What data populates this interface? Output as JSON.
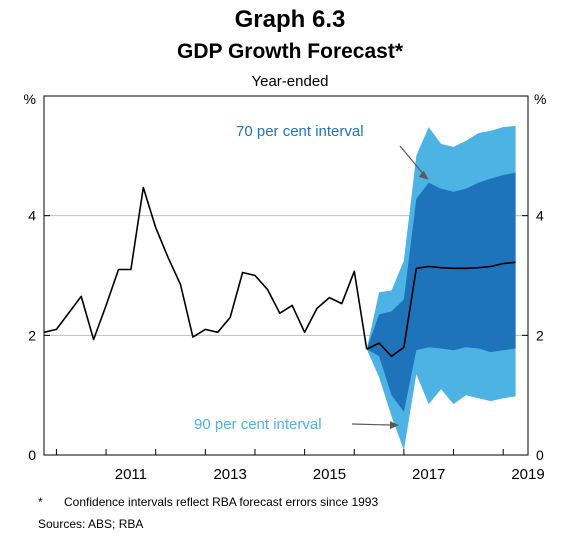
{
  "chart_data": {
    "type": "area",
    "title": "Graph 6.3",
    "subtitle": "GDP Growth Forecast*",
    "subtitle2": "Year-ended",
    "y_unit_left": "%",
    "y_unit_right": "%",
    "ylim": [
      0,
      6
    ],
    "yticks": [
      0,
      2,
      4
    ],
    "xlim": [
      2009.75,
      2019.5
    ],
    "xticks": [
      "2011",
      "2013",
      "2015",
      "2017",
      "2019"
    ],
    "xtick_positions": [
      2011.0,
      2013.0,
      2015.0,
      2017.0,
      2019.0
    ],
    "grid": true,
    "series": [
      {
        "type": "line",
        "color": "#000000",
        "x": [
          2009.75,
          2010.0,
          2010.5,
          2010.75,
          2011.0,
          2011.25,
          2011.5,
          2011.75,
          2012.0,
          2012.25,
          2012.5,
          2012.75,
          2013.0,
          2013.25,
          2013.5,
          2013.75,
          2014.0,
          2014.25,
          2014.5,
          2014.75,
          2015.0,
          2015.25,
          2015.5,
          2015.75,
          2016.0,
          2016.25
        ],
        "y": [
          2.05,
          2.1,
          2.65,
          1.93,
          2.5,
          3.1,
          3.1,
          4.47,
          3.8,
          3.3,
          2.85,
          1.97,
          2.1,
          2.05,
          2.3,
          3.05,
          3.0,
          2.77,
          2.37,
          2.5,
          2.05,
          2.45,
          2.63,
          2.53,
          3.07,
          1.77
        ]
      },
      {
        "type": "line",
        "color": "#000000",
        "x": [
          2016.25,
          2016.5,
          2016.75,
          2017.0,
          2017.25,
          2017.5,
          2017.75,
          2018.0,
          2018.25,
          2018.5,
          2018.75,
          2019.0,
          2019.25
        ],
        "y": [
          1.77,
          1.87,
          1.65,
          1.8,
          3.12,
          3.15,
          3.13,
          3.12,
          3.12,
          3.13,
          3.15,
          3.2,
          3.22
        ]
      }
    ],
    "bands": [
      {
        "label": "90 per cent interval",
        "color": "#4cb3e4",
        "x": [
          2016.25,
          2016.5,
          2016.75,
          2017.0,
          2017.25,
          2017.5,
          2017.75,
          2018.0,
          2018.25,
          2018.5,
          2018.75,
          2019.0,
          2019.25
        ],
        "upper": [
          1.77,
          2.72,
          2.75,
          3.25,
          5.0,
          5.48,
          5.2,
          5.15,
          5.25,
          5.38,
          5.42,
          5.48,
          5.5
        ],
        "lower": [
          1.77,
          1.3,
          0.65,
          0.08,
          1.35,
          0.85,
          1.1,
          0.85,
          1.0,
          0.95,
          0.9,
          0.95,
          0.98
        ]
      },
      {
        "label": "70 per cent interval",
        "color": "#1f73bb",
        "x": [
          2016.25,
          2016.5,
          2016.75,
          2017.0,
          2017.25,
          2017.5,
          2017.75,
          2018.0,
          2018.25,
          2018.5,
          2018.75,
          2019.0,
          2019.25
        ],
        "upper": [
          1.77,
          2.35,
          2.4,
          2.6,
          4.28,
          4.55,
          4.45,
          4.4,
          4.45,
          4.55,
          4.62,
          4.68,
          4.72
        ],
        "lower": [
          1.77,
          1.65,
          1.0,
          0.72,
          1.75,
          1.8,
          1.78,
          1.75,
          1.8,
          1.78,
          1.72,
          1.75,
          1.78
        ]
      }
    ],
    "annotations": [
      {
        "text": "70 per cent interval",
        "color": "#1f73bb",
        "arrow_to": [
          2017.5,
          4.6
        ]
      },
      {
        "text": "90 per cent interval",
        "color": "#4cb3e4",
        "arrow_to": [
          2016.9,
          0.5
        ]
      }
    ]
  },
  "footnote": {
    "mark": "*",
    "text": "Confidence intervals reflect RBA forecast errors since 1993"
  },
  "sources": "Sources:   ABS; RBA"
}
